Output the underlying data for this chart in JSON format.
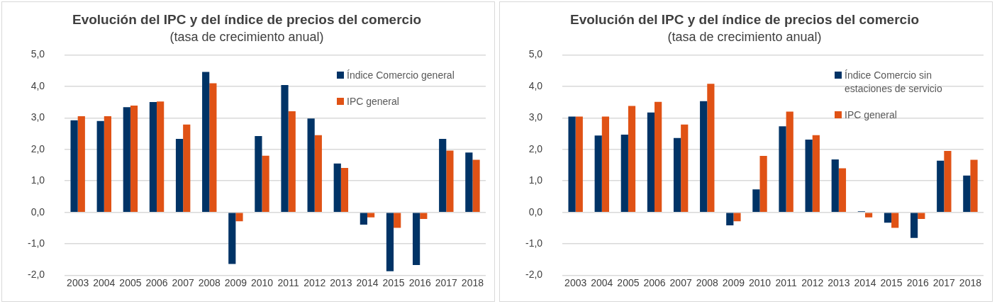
{
  "chart_data": [
    {
      "type": "bar",
      "title": "Evolución del IPC y del índice de precios del comercio",
      "subtitle": "(tasa de crecimiento anual)",
      "categories": [
        "2003",
        "2004",
        "2005",
        "2006",
        "2007",
        "2008",
        "2009",
        "2010",
        "2011",
        "2012",
        "2013",
        "2014",
        "2015",
        "2016",
        "2017",
        "2018"
      ],
      "series": [
        {
          "name": "Índice Comercio general",
          "color": "#003366",
          "values": [
            2.92,
            2.9,
            3.34,
            3.5,
            2.33,
            4.46,
            -1.64,
            2.42,
            4.04,
            2.98,
            1.55,
            -0.39,
            -1.87,
            -1.67,
            2.33,
            1.9
          ]
        },
        {
          "name": "IPC general",
          "color": "#e05215",
          "values": [
            3.05,
            3.05,
            3.39,
            3.52,
            2.79,
            4.1,
            -0.28,
            1.8,
            3.21,
            2.45,
            1.41,
            -0.16,
            -0.49,
            -0.21,
            1.96,
            1.67
          ]
        }
      ],
      "ylim": [
        -2,
        5
      ],
      "yticks": [
        {
          "value": -2,
          "label": "-2,0"
        },
        {
          "value": -1,
          "label": "-1,0"
        },
        {
          "value": 0,
          "label": "0,0"
        },
        {
          "value": 1,
          "label": "1,0"
        },
        {
          "value": 2,
          "label": "2,0"
        },
        {
          "value": 3,
          "label": "3,0"
        },
        {
          "value": 4,
          "label": "4,0"
        },
        {
          "value": 5,
          "label": "5,0"
        }
      ],
      "grid": "y",
      "legend": "top right"
    },
    {
      "type": "bar",
      "title": "Evolución del IPC y del índice de precios del comercio",
      "subtitle": "(tasa de crecimiento anual)",
      "categories": [
        "2003",
        "2004",
        "2005",
        "2006",
        "2007",
        "2008",
        "2009",
        "2010",
        "2011",
        "2012",
        "2013",
        "2014",
        "2015",
        "2016",
        "2017",
        "2018"
      ],
      "series": [
        {
          "name": "Índice Comercio sin estaciones de servicio",
          "color": "#003366",
          "values": [
            3.04,
            2.44,
            2.47,
            3.17,
            2.36,
            3.53,
            -0.41,
            0.73,
            2.73,
            2.31,
            1.68,
            0.03,
            -0.33,
            -0.81,
            1.64,
            1.17
          ]
        },
        {
          "name": "IPC general",
          "color": "#e05215",
          "values": [
            3.04,
            3.04,
            3.38,
            3.51,
            2.79,
            4.08,
            -0.28,
            1.79,
            3.2,
            2.45,
            1.4,
            -0.16,
            -0.49,
            -0.21,
            1.95,
            1.67
          ]
        }
      ],
      "ylim": [
        -2,
        5
      ],
      "yticks": [
        {
          "value": -2,
          "label": "-2,0"
        },
        {
          "value": -1,
          "label": "-1,0"
        },
        {
          "value": 0,
          "label": "0,0"
        },
        {
          "value": 1,
          "label": "1,0"
        },
        {
          "value": 2,
          "label": "2,0"
        },
        {
          "value": 3,
          "label": "3,0"
        },
        {
          "value": 4,
          "label": "4,0"
        },
        {
          "value": 5,
          "label": "5,0"
        }
      ],
      "grid": "y",
      "legend": "top right"
    }
  ]
}
